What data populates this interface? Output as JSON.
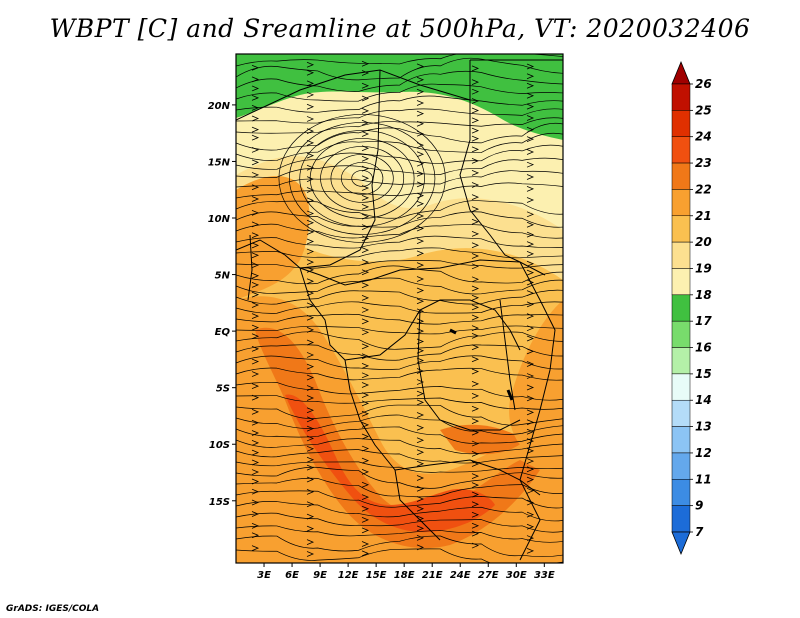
{
  "title": "WBPT [C] and Sreamline at 500hPa, VT: 2020032406",
  "credit": "GrADS: IGES/COLA",
  "map": {
    "lon_range": [
      0,
      35
    ],
    "lat_range": [
      -20.5,
      24.5
    ],
    "lon_ticks": [
      {
        "lon": 3,
        "label": "3E"
      },
      {
        "lon": 6,
        "label": "6E"
      },
      {
        "lon": 9,
        "label": "9E"
      },
      {
        "lon": 12,
        "label": "12E"
      },
      {
        "lon": 15,
        "label": "15E"
      },
      {
        "lon": 18,
        "label": "18E"
      },
      {
        "lon": 21,
        "label": "21E"
      },
      {
        "lon": 24,
        "label": "24E"
      },
      {
        "lon": 27,
        "label": "27E"
      },
      {
        "lon": 30,
        "label": "30E"
      },
      {
        "lon": 33,
        "label": "33E"
      }
    ],
    "lat_ticks": [
      {
        "lat": 20,
        "label": "20N"
      },
      {
        "lat": 15,
        "label": "15N"
      },
      {
        "lat": 10,
        "label": "10N"
      },
      {
        "lat": 5,
        "label": "5N"
      },
      {
        "lat": 0,
        "label": "EQ"
      },
      {
        "lat": -5,
        "label": "5S"
      },
      {
        "lat": -10,
        "label": "10S"
      },
      {
        "lat": -15,
        "label": "15S"
      }
    ]
  },
  "colorbar": {
    "levels": [
      {
        "label": "26",
        "color": "#a00000"
      },
      {
        "label": "25",
        "color": "#c01000"
      },
      {
        "label": "24",
        "color": "#e03000"
      },
      {
        "label": "23",
        "color": "#f05010"
      },
      {
        "label": "22",
        "color": "#f07818"
      },
      {
        "label": "21",
        "color": "#f8a030"
      },
      {
        "label": "20",
        "color": "#fac050"
      },
      {
        "label": "19",
        "color": "#fce090"
      },
      {
        "label": "18",
        "color": "#fcf0b0"
      },
      {
        "label": "17",
        "color": "#40c040"
      },
      {
        "label": "16",
        "color": "#78dc6c"
      },
      {
        "label": "15",
        "color": "#b4f0a8"
      },
      {
        "label": "14",
        "color": "#e8fcf8"
      },
      {
        "label": "13",
        "color": "#b4dcf8"
      },
      {
        "label": "12",
        "color": "#8cc4f4"
      },
      {
        "label": "11",
        "color": "#64a8ec"
      },
      {
        "label": "9",
        "color": "#3c8ce4"
      },
      {
        "label": "7",
        "color": "#1c6cd8"
      }
    ],
    "top_color": "#a00000",
    "bottom_color": "#1c6cd8"
  }
}
